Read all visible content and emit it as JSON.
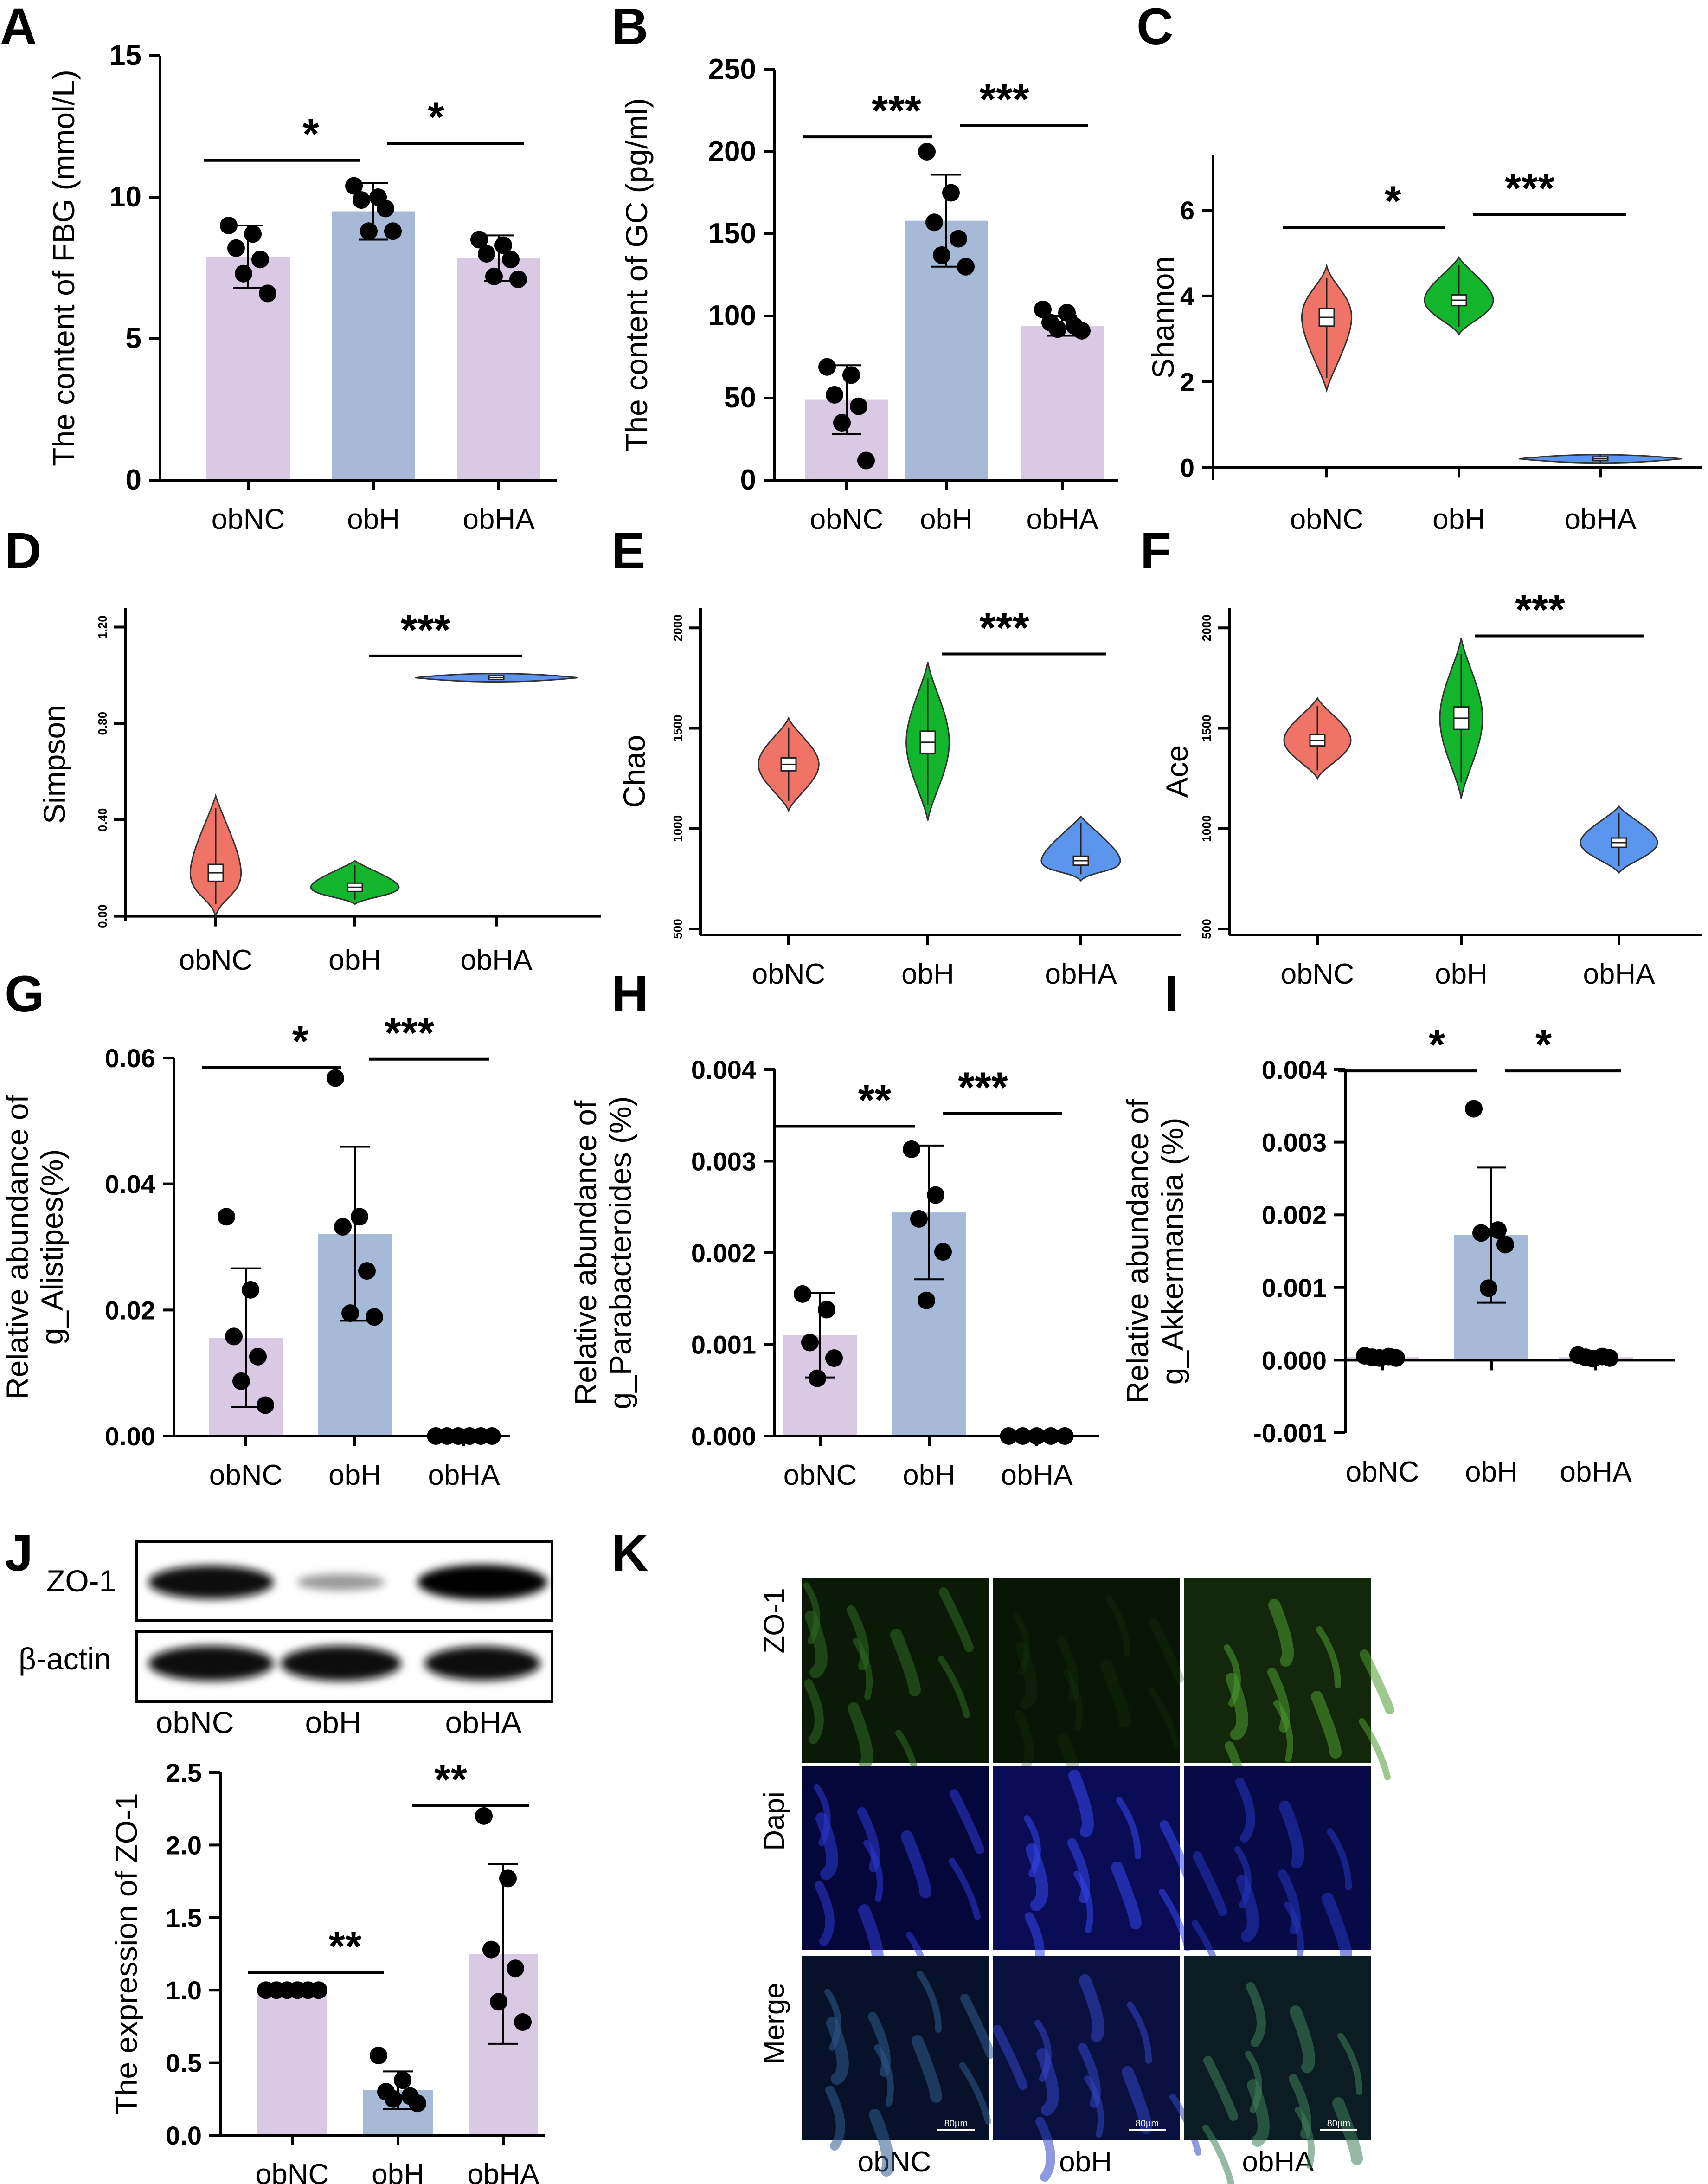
{
  "colors": {
    "purple": "#d9c9e3",
    "blue": "#a6b9d6",
    "violin_red": "#f07367",
    "violin_green": "#12b52b",
    "violin_blue": "#5c95ee",
    "dots": "#000000"
  },
  "panels": {
    "A": "A",
    "B": "B",
    "C": "C",
    "D": "D",
    "E": "E",
    "F": "F",
    "G": "G",
    "H": "H",
    "I": "I",
    "J": "J",
    "K": "K"
  },
  "chart_data": [
    {
      "id": "A",
      "type": "bar",
      "categories": [
        "obNC",
        "obH",
        "obHA"
      ],
      "values": [
        7.9,
        9.5,
        7.85
      ],
      "errors": [
        1.1,
        1.0,
        0.8
      ],
      "points": [
        [
          9.0,
          8.7,
          8.2,
          7.8,
          7.3,
          6.6
        ],
        [
          10.4,
          10.0,
          9.9,
          9.6,
          8.8,
          8.8
        ],
        [
          8.5,
          8.3,
          8.0,
          7.8,
          7.2,
          7.1
        ]
      ],
      "ylabel": "The content of FBG (mmol/L)",
      "ylim": [
        0,
        15
      ],
      "yticks": [
        "0",
        "5",
        "10",
        "15"
      ],
      "sig": [
        {
          "from": 0,
          "to": 1,
          "label": "*",
          "y": 11.3
        },
        {
          "from": 1,
          "to": 2,
          "label": "*",
          "y": 11.9
        }
      ]
    },
    {
      "id": "B",
      "type": "bar",
      "categories": [
        "obNC",
        "obH",
        "obHA"
      ],
      "values": [
        49,
        158,
        94
      ],
      "errors": [
        21,
        28,
        6
      ],
      "points": [
        [
          69,
          64,
          52,
          45,
          35,
          12
        ],
        [
          200,
          175,
          157,
          147,
          137,
          130
        ],
        [
          104,
          102,
          96,
          94,
          92,
          91
        ]
      ],
      "ylabel": "The content of GC (pg/ml)",
      "ylim": [
        0,
        250
      ],
      "yticks": [
        "0",
        "50",
        "100",
        "150",
        "200",
        "250"
      ],
      "sig": [
        {
          "from": 0,
          "to": 1,
          "label": "***",
          "y": 209
        },
        {
          "from": 1,
          "to": 2,
          "label": "***",
          "y": 216
        }
      ]
    },
    {
      "id": "C",
      "type": "violin",
      "categories": [
        "obNC",
        "obH",
        "obHA"
      ],
      "ylabel": "Shannon",
      "ylim": [
        -0.3,
        7.3
      ],
      "yticks": [
        "0",
        "2",
        "4",
        "6"
      ],
      "medians": [
        3.5,
        3.9,
        0.2
      ],
      "ranges": [
        [
          1.8,
          4.7
        ],
        [
          3.1,
          4.9
        ],
        [
          0.1,
          0.3
        ]
      ],
      "sig": [
        {
          "from": 0,
          "to": 1,
          "label": "*",
          "y": 5.6
        },
        {
          "from": 1,
          "to": 2,
          "label": "***",
          "y": 5.9
        }
      ]
    },
    {
      "id": "D",
      "type": "violin",
      "categories": [
        "obNC",
        "obH",
        "obHA"
      ],
      "ylabel": "Simpson",
      "ylim": [
        -0.02,
        1.28
      ],
      "yticks": [
        "0.00",
        "0.40",
        "0.80",
        "1.20"
      ],
      "medians": [
        0.18,
        0.12,
        0.99
      ],
      "ranges": [
        [
          0.0,
          0.5
        ],
        [
          0.05,
          0.23
        ],
        [
          0.98,
          1.0
        ]
      ],
      "sig": [
        {
          "from": 1,
          "to": 2,
          "label": "***",
          "y": 1.08
        }
      ]
    },
    {
      "id": "E",
      "type": "violin",
      "categories": [
        "obNC",
        "obH",
        "obHA"
      ],
      "ylabel": "Chao",
      "ylim": [
        470,
        2100
      ],
      "yticks": [
        "500",
        "1000",
        "1500",
        "2000"
      ],
      "medians": [
        1320,
        1430,
        840
      ],
      "ranges": [
        [
          1090,
          1550
        ],
        [
          1040,
          1830
        ],
        [
          740,
          1060
        ]
      ],
      "sig": [
        {
          "from": 1,
          "to": 2,
          "label": "***",
          "y": 1870
        }
      ]
    },
    {
      "id": "F",
      "type": "violin",
      "categories": [
        "obNC",
        "obH",
        "obHA"
      ],
      "ylabel": "Ace",
      "ylim": [
        470,
        2100
      ],
      "yticks": [
        "500",
        "1000",
        "1500",
        "2000"
      ],
      "medians": [
        1440,
        1550,
        930
      ],
      "ranges": [
        [
          1250,
          1650
        ],
        [
          1150,
          1950
        ],
        [
          780,
          1110
        ]
      ],
      "sig": [
        {
          "from": 1,
          "to": 2,
          "label": "***",
          "y": 1960
        }
      ]
    },
    {
      "id": "G",
      "type": "bar",
      "categories": [
        "obNC",
        "obH",
        "obHA"
      ],
      "values": [
        0.0156,
        0.0321,
        0.0
      ],
      "errors": [
        0.011,
        0.0138,
        0.0
      ],
      "points": [
        [
          0.0348,
          0.0232,
          0.0158,
          0.0126,
          0.0087,
          0.0049
        ],
        [
          0.0568,
          0.0348,
          0.0332,
          0.0262,
          0.0195,
          0.0189
        ],
        [
          0,
          0,
          0,
          0,
          0,
          0
        ]
      ],
      "ylabel": "Relative abundance of g_Alistipes(%)",
      "ylim": [
        0,
        0.06
      ],
      "yticks": [
        "0.00",
        "0.02",
        "0.04",
        "0.06"
      ],
      "sig": [
        {
          "from": 0,
          "to": 1,
          "label": "*",
          "y": 0.0585
        },
        {
          "from": 1,
          "to": 2,
          "label": "***",
          "y": 0.0598
        }
      ]
    },
    {
      "id": "H",
      "type": "bar",
      "categories": [
        "obNC",
        "obH",
        "obHA"
      ],
      "values": [
        0.0011,
        0.00244,
        0.0
      ],
      "errors": [
        0.00046,
        0.00073,
        0.0
      ],
      "points": [
        [
          0.00155,
          0.00138,
          0.00102,
          0.00085,
          0.00063
        ],
        [
          0.00313,
          0.00263,
          0.00237,
          0.00201,
          0.00148
        ],
        [
          0,
          0,
          0,
          0,
          0
        ]
      ],
      "ylabel": "Relative abundance of g_Parabacteroides (%)",
      "ylim": [
        0,
        0.004
      ],
      "yticks": [
        "0.000",
        "0.001",
        "0.002",
        "0.003",
        "0.004"
      ],
      "sig": [
        {
          "from": 0,
          "to": 1,
          "label": "**",
          "y": 0.00338
        },
        {
          "from": 1,
          "to": 2,
          "label": "***",
          "y": 0.00352
        }
      ]
    },
    {
      "id": "I",
      "type": "bar",
      "categories": [
        "obNC",
        "obH",
        "obHA"
      ],
      "values": [
        4e-05,
        0.00172,
        4e-05
      ],
      "errors": [
        1e-05,
        0.00093,
        1e-05
      ],
      "points": [
        [
          6e-05,
          5e-05,
          4e-05,
          3e-05,
          3e-05
        ],
        [
          0.00346,
          0.00179,
          0.00175,
          0.00159,
          0.00099
        ],
        [
          7e-05,
          5e-05,
          4e-05,
          3e-05,
          2e-05
        ]
      ],
      "ylabel": "Relative abundance of g_Akkermansia (%)",
      "ylim": [
        -0.001,
        0.004
      ],
      "yticks": [
        "-0.001",
        "0.000",
        "0.001",
        "0.002",
        "0.003",
        "0.004"
      ],
      "sig": [
        {
          "from": 0,
          "to": 1,
          "label": "*",
          "y": 0.00398
        },
        {
          "from": 1,
          "to": 2,
          "label": "*",
          "y": 0.00398
        }
      ]
    },
    {
      "id": "J",
      "type": "bar",
      "categories": [
        "obNC",
        "obH",
        "obHA"
      ],
      "values": [
        1.0,
        0.31,
        1.25
      ],
      "errors": [
        0.0,
        0.13,
        0.62
      ],
      "points": [
        [
          1.0,
          1.0,
          1.0,
          1.0,
          1.0,
          1.0
        ],
        [
          0.55,
          0.38,
          0.3,
          0.27,
          0.25,
          0.22
        ],
        [
          2.2,
          1.77,
          1.28,
          1.15,
          0.92,
          0.78
        ]
      ],
      "ylabel": "The expression of ZO-1",
      "ylim": [
        0,
        2.5
      ],
      "yticks": [
        "0.0",
        "0.5",
        "1.0",
        "1.5",
        "2.0",
        "2.5"
      ],
      "sig": [
        {
          "from": 0,
          "to": 1,
          "label": "**",
          "y": 1.12
        },
        {
          "from": 1,
          "to": 2,
          "label": "**",
          "y": 2.27
        }
      ]
    }
  ],
  "blot": {
    "rows": [
      "ZO-1",
      "β-actin"
    ],
    "lanes": [
      "obNC",
      "obH",
      "obHA"
    ]
  },
  "micro": {
    "rows": [
      "ZO-1",
      "Dapi",
      "Merge"
    ],
    "cols": [
      "obNC",
      "obH",
      "obHA"
    ],
    "scale": "80μm"
  }
}
